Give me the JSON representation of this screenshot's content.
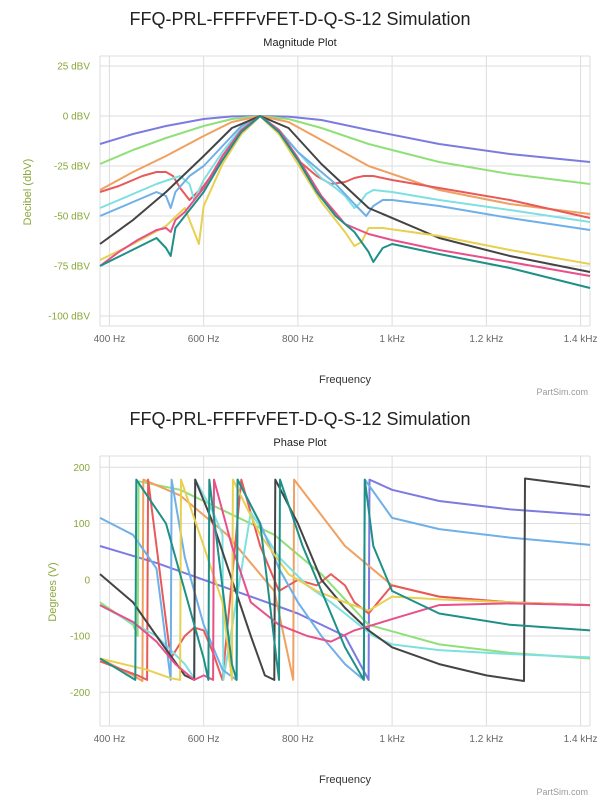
{
  "chart_data": [
    {
      "type": "line",
      "title": "FFQ-PRL-FFFFvFET-D-Q-S-12 Simulation",
      "subtitle": "Magnitude Plot",
      "xlabel": "Frequency",
      "ylabel": "Decibel (dbV)",
      "credit": "PartSim.com",
      "xlim": [
        380,
        1420
      ],
      "ylim": [
        -105,
        30
      ],
      "x_ticks": [
        400,
        600,
        800,
        1000,
        1200,
        1400
      ],
      "x_tick_labels": [
        "400 Hz",
        "600 Hz",
        "800 Hz",
        "1 kHz",
        "1.2 kHz",
        "1.4 kHz"
      ],
      "y_ticks": [
        25,
        0,
        -25,
        -50,
        -75,
        -100
      ],
      "y_tick_labels": [
        "25 dBV",
        "0 dBV",
        "-25 dBV",
        "-50 dBV",
        "-75 dBV",
        "-100 dBV"
      ],
      "grid": true,
      "series": [
        {
          "color": "#7b7be0",
          "x": [
            380,
            450,
            520,
            600,
            660,
            720,
            780,
            850,
            950,
            1100,
            1250,
            1420
          ],
          "values": [
            -14,
            -9,
            -5,
            -1.5,
            -0.2,
            0,
            -0.3,
            -2,
            -7,
            -14,
            -19,
            -23
          ]
        },
        {
          "color": "#90e07a",
          "x": [
            380,
            450,
            520,
            600,
            660,
            720,
            780,
            850,
            950,
            1100,
            1250,
            1420
          ],
          "values": [
            -24,
            -17,
            -11,
            -5,
            -1.5,
            0,
            -1.5,
            -6,
            -14,
            -23,
            -29,
            -34
          ]
        },
        {
          "color": "#f0a060",
          "x": [
            380,
            450,
            520,
            600,
            660,
            720,
            780,
            850,
            950,
            1100,
            1250,
            1420
          ],
          "values": [
            -37,
            -28,
            -20,
            -10,
            -3,
            0,
            -3,
            -12,
            -25,
            -37,
            -44,
            -49
          ]
        },
        {
          "color": "#e85a5a",
          "x": [
            380,
            420,
            470,
            500,
            520,
            535,
            550,
            570,
            600,
            640,
            680,
            720,
            760,
            800,
            840,
            870,
            900,
            920,
            940,
            960,
            1000,
            1100,
            1250,
            1420
          ],
          "values": [
            -38,
            -35,
            -30,
            -28,
            -28,
            -30,
            -36,
            -42,
            -35,
            -22,
            -9,
            0,
            -9,
            -22,
            -30,
            -34,
            -33,
            -31,
            -30,
            -30,
            -32,
            -36,
            -42,
            -51
          ]
        },
        {
          "color": "#7ee0e0",
          "x": [
            380,
            440,
            500,
            550,
            570,
            580,
            600,
            640,
            680,
            720,
            760,
            800,
            850,
            880,
            900,
            920,
            930,
            945,
            960,
            1000,
            1100,
            1250,
            1420
          ],
          "values": [
            -46,
            -40,
            -34,
            -30,
            -34,
            -42,
            -32,
            -18,
            -6,
            0,
            -7,
            -18,
            -31,
            -36,
            -40,
            -46,
            -44,
            -39,
            -37,
            -38,
            -42,
            -47,
            -53
          ]
        },
        {
          "color": "#6fb0e8",
          "x": [
            380,
            440,
            500,
            520,
            530,
            540,
            570,
            600,
            640,
            680,
            720,
            760,
            800,
            840,
            880,
            920,
            945,
            960,
            980,
            1000,
            1100,
            1250,
            1420
          ],
          "values": [
            -50,
            -44,
            -38,
            -40,
            -46,
            -38,
            -30,
            -25,
            -15,
            -5,
            0,
            -7,
            -18,
            -26,
            -34,
            -44,
            -50,
            -45,
            -42,
            -42,
            -45,
            -51,
            -57
          ]
        },
        {
          "color": "#444444",
          "x": [
            380,
            450,
            520,
            600,
            660,
            720,
            780,
            850,
            950,
            1100,
            1250,
            1420
          ],
          "values": [
            -64,
            -52,
            -38,
            -20,
            -6,
            0,
            -6,
            -24,
            -46,
            -61,
            -70,
            -78
          ]
        },
        {
          "color": "#e8d050",
          "x": [
            380,
            450,
            520,
            560,
            580,
            590,
            600,
            640,
            680,
            720,
            760,
            800,
            850,
            880,
            900,
            920,
            935,
            950,
            980,
            1100,
            1250,
            1420
          ],
          "values": [
            -72,
            -64,
            -55,
            -46,
            -58,
            -64,
            -45,
            -24,
            -9,
            0,
            -9,
            -24,
            -43,
            -52,
            -58,
            -65,
            -63,
            -56,
            -56,
            -60,
            -67,
            -74
          ]
        },
        {
          "color": "#e8508a",
          "x": [
            380,
            420,
            460,
            500,
            520,
            530,
            540,
            560,
            600,
            640,
            680,
            720,
            760,
            800,
            850,
            900,
            950,
            1000,
            1100,
            1250,
            1420
          ],
          "values": [
            -75,
            -68,
            -62,
            -57,
            -56,
            -58,
            -52,
            -48,
            -36,
            -20,
            -7,
            0,
            -7,
            -21,
            -40,
            -54,
            -59,
            -62,
            -67,
            -73,
            -80
          ]
        },
        {
          "color": "#1e9088",
          "x": [
            380,
            440,
            500,
            520,
            530,
            540,
            560,
            600,
            640,
            680,
            720,
            760,
            800,
            840,
            880,
            920,
            950,
            960,
            980,
            1000,
            1100,
            1250,
            1420
          ],
          "values": [
            -75,
            -68,
            -61,
            -66,
            -70,
            -56,
            -50,
            -38,
            -22,
            -8,
            0,
            -8,
            -22,
            -38,
            -50,
            -58,
            -68,
            -73,
            -66,
            -64,
            -69,
            -76,
            -86
          ]
        }
      ]
    },
    {
      "type": "line",
      "title": "FFQ-PRL-FFFFvFET-D-Q-S-12 Simulation",
      "subtitle": "Phase Plot",
      "xlabel": "Frequency",
      "ylabel": "Degrees (V)",
      "credit": "PartSim.com",
      "xlim": [
        380,
        1420
      ],
      "ylim": [
        -260,
        220
      ],
      "x_ticks": [
        400,
        600,
        800,
        1000,
        1200,
        1400
      ],
      "x_tick_labels": [
        "400 Hz",
        "600 Hz",
        "800 Hz",
        "1 kHz",
        "1.2 kHz",
        "1.4 kHz"
      ],
      "y_ticks": [
        200,
        100,
        0,
        -100,
        -200
      ],
      "y_tick_labels": [
        "200",
        "100",
        "0",
        "-100",
        "-200"
      ],
      "grid": true,
      "series": [
        {
          "color": "#7b7be0",
          "x": [
            380,
            500,
            600,
            700,
            800,
            900,
            950,
            952,
            1000,
            1100,
            1250,
            1420
          ],
          "values": [
            60,
            30,
            0,
            -30,
            -60,
            -100,
            -178,
            178,
            160,
            140,
            125,
            115
          ]
        },
        {
          "color": "#90e07a",
          "x": [
            380,
            450,
            460,
            462,
            550,
            650,
            750,
            850,
            950,
            1100,
            1250,
            1420
          ],
          "values": [
            -40,
            -80,
            -100,
            175,
            160,
            120,
            80,
            10,
            -80,
            -115,
            -130,
            -140
          ]
        },
        {
          "color": "#f0a060",
          "x": [
            380,
            450,
            470,
            472,
            550,
            650,
            750,
            790,
            792,
            900,
            1000,
            1100,
            1250,
            1420
          ],
          "values": [
            -140,
            -170,
            -180,
            178,
            150,
            80,
            -20,
            -178,
            178,
            60,
            -10,
            -30,
            -40,
            -45
          ]
        },
        {
          "color": "#e85a5a",
          "x": [
            380,
            460,
            480,
            482,
            530,
            560,
            580,
            600,
            620,
            640,
            680,
            720,
            760,
            800,
            840,
            870,
            900,
            920,
            950,
            1000,
            1100,
            1250,
            1420
          ],
          "values": [
            -145,
            -170,
            -178,
            178,
            -140,
            -100,
            -85,
            -90,
            -130,
            -178,
            178,
            60,
            -20,
            0,
            -10,
            10,
            -10,
            -40,
            -60,
            -10,
            -30,
            -40,
            -45
          ]
        },
        {
          "color": "#7ee0e0",
          "x": [
            380,
            500,
            560,
            580,
            582,
            620,
            640,
            642,
            700,
            760,
            820,
            870,
            900,
            930,
            960,
            1000,
            1100,
            1250,
            1420
          ],
          "values": [
            -45,
            -100,
            -150,
            -175,
            178,
            120,
            80,
            -178,
            120,
            40,
            -10,
            -40,
            -60,
            -80,
            -100,
            -115,
            -125,
            -132,
            -138
          ]
        },
        {
          "color": "#6fb0e8",
          "x": [
            380,
            450,
            500,
            530,
            532,
            560,
            600,
            640,
            670,
            672,
            720,
            760,
            800,
            850,
            900,
            940,
            942,
            1000,
            1100,
            1250,
            1420
          ],
          "values": [
            110,
            80,
            20,
            -178,
            178,
            40,
            -80,
            -160,
            -178,
            178,
            100,
            20,
            -40,
            -100,
            -150,
            -178,
            178,
            110,
            90,
            75,
            62
          ]
        },
        {
          "color": "#444444",
          "x": [
            380,
            450,
            500,
            560,
            580,
            582,
            620,
            660,
            700,
            730,
            750,
            752,
            800,
            850,
            900,
            950,
            1000,
            1100,
            1200,
            1280,
            1282,
            1420
          ],
          "values": [
            10,
            -40,
            -100,
            -170,
            -178,
            178,
            100,
            0,
            -100,
            -170,
            -178,
            178,
            100,
            0,
            -50,
            -90,
            -120,
            -150,
            -170,
            -180,
            180,
            165
          ]
        },
        {
          "color": "#e8d050",
          "x": [
            380,
            480,
            530,
            550,
            552,
            600,
            640,
            660,
            662,
            720,
            780,
            840,
            900,
            950,
            1000,
            1100,
            1250,
            1420
          ],
          "values": [
            -140,
            -160,
            -175,
            -178,
            178,
            60,
            -40,
            -178,
            178,
            80,
            10,
            -20,
            -40,
            -55,
            -30,
            -35,
            -40,
            -45
          ]
        },
        {
          "color": "#e8508a",
          "x": [
            380,
            450,
            500,
            540,
            580,
            600,
            620,
            622,
            660,
            700,
            760,
            820,
            870,
            920,
            960,
            1000,
            1100,
            1250,
            1420
          ],
          "values": [
            -45,
            -75,
            -110,
            -150,
            -178,
            -170,
            -178,
            178,
            60,
            -40,
            -80,
            -100,
            -110,
            -90,
            -80,
            -70,
            -45,
            -42,
            -45
          ]
        },
        {
          "color": "#1e9088",
          "x": [
            380,
            420,
            455,
            457,
            520,
            600,
            610,
            612,
            660,
            670,
            672,
            720,
            760,
            762,
            810,
            860,
            900,
            940,
            942,
            960,
            1000,
            1100,
            1250,
            1420
          ],
          "values": [
            -140,
            -160,
            -178,
            178,
            100,
            -140,
            -178,
            178,
            -150,
            -178,
            178,
            100,
            -178,
            178,
            60,
            -40,
            -120,
            -178,
            178,
            60,
            -20,
            -60,
            -80,
            -90
          ]
        }
      ]
    }
  ]
}
